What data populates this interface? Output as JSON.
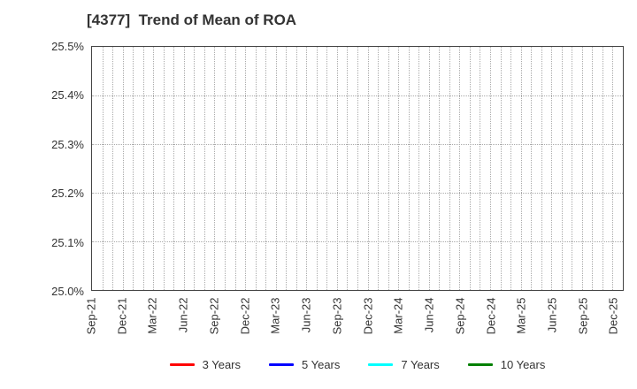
{
  "title": "[4377]  Trend of Mean of ROA",
  "chart_data": {
    "type": "line",
    "title": "[4377]  Trend of Mean of ROA",
    "x_categories": [
      "Sep-21",
      "Dec-21",
      "Mar-22",
      "Jun-22",
      "Sep-22",
      "Dec-22",
      "Mar-23",
      "Jun-23",
      "Sep-23",
      "Dec-23",
      "Mar-24",
      "Jun-24",
      "Sep-24",
      "Dec-24",
      "Mar-25",
      "Jun-25",
      "Sep-25",
      "Dec-25"
    ],
    "x_label_interval_months": 3,
    "x_total_months": 52,
    "y_ticks": [
      "25.5%",
      "25.4%",
      "25.3%",
      "25.2%",
      "25.1%",
      "25.0%"
    ],
    "ylim": [
      25.0,
      25.5
    ],
    "xlabel": "",
    "ylabel": "",
    "grid": "dotted, monthly vertical and 0.1% horizontal",
    "legend_position": "bottom",
    "series": [
      {
        "name": "3 Years",
        "color": "#ff0000",
        "values": []
      },
      {
        "name": "5 Years",
        "color": "#0000ff",
        "values": []
      },
      {
        "name": "7 Years",
        "color": "#00ffff",
        "values": []
      },
      {
        "name": "10 Years",
        "color": "#008000",
        "values": []
      }
    ]
  }
}
